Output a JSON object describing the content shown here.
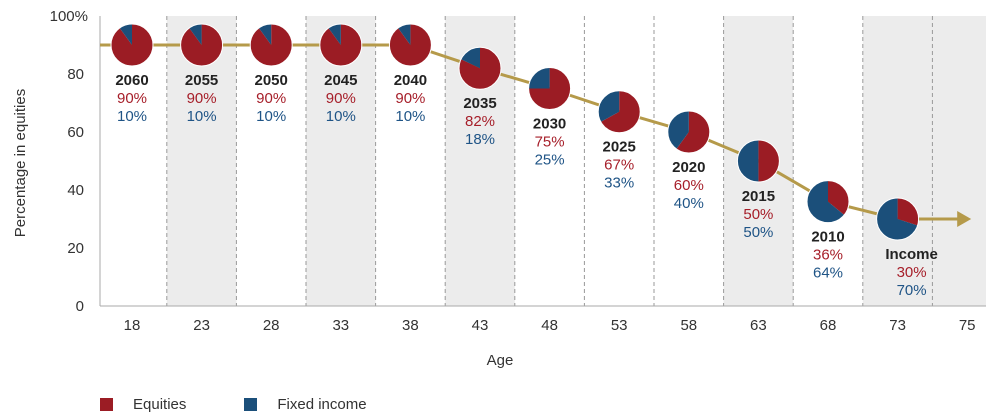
{
  "colors": {
    "equities": "#9b1c24",
    "fixed_income": "#1b4f7a",
    "path_line": "#b59a4a",
    "shade": "#ececec",
    "grid_dash": "#999999",
    "equity_text": "#a61e29",
    "fixed_text": "#1f5486"
  },
  "chart_data": {
    "type": "line",
    "title": "",
    "xlabel": "Age",
    "ylabel": "Percentage in equities",
    "xlim": [
      18,
      75
    ],
    "ylim": [
      0,
      100
    ],
    "x_ticks": [
      "18",
      "23",
      "28",
      "33",
      "38",
      "43",
      "48",
      "53",
      "58",
      "63",
      "68",
      "73",
      "75"
    ],
    "y_ticks": [
      "0",
      "20",
      "40",
      "60",
      "80",
      "100%"
    ],
    "grid": "vertical dashed",
    "legend_position": "bottom-left",
    "series": [
      {
        "name": "Equities",
        "x": [
          18,
          23,
          28,
          33,
          38,
          43,
          48,
          53,
          58,
          63,
          68,
          73,
          75
        ],
        "values": [
          90,
          90,
          90,
          90,
          90,
          82,
          75,
          67,
          60,
          50,
          36,
          30,
          30
        ]
      }
    ],
    "funds": [
      {
        "label": "2060",
        "age": 18,
        "equities": 90,
        "fixed_income": 10,
        "equities_label": "90%",
        "fixed_label": "10%"
      },
      {
        "label": "2055",
        "age": 23,
        "equities": 90,
        "fixed_income": 10,
        "equities_label": "90%",
        "fixed_label": "10%"
      },
      {
        "label": "2050",
        "age": 28,
        "equities": 90,
        "fixed_income": 10,
        "equities_label": "90%",
        "fixed_label": "10%"
      },
      {
        "label": "2045",
        "age": 33,
        "equities": 90,
        "fixed_income": 10,
        "equities_label": "90%",
        "fixed_label": "10%"
      },
      {
        "label": "2040",
        "age": 38,
        "equities": 90,
        "fixed_income": 10,
        "equities_label": "90%",
        "fixed_label": "10%"
      },
      {
        "label": "2035",
        "age": 43,
        "equities": 82,
        "fixed_income": 18,
        "equities_label": "82%",
        "fixed_label": "18%"
      },
      {
        "label": "2030",
        "age": 48,
        "equities": 75,
        "fixed_income": 25,
        "equities_label": "75%",
        "fixed_label": "25%"
      },
      {
        "label": "2025",
        "age": 53,
        "equities": 67,
        "fixed_income": 33,
        "equities_label": "67%",
        "fixed_label": "33%"
      },
      {
        "label": "2020",
        "age": 58,
        "equities": 60,
        "fixed_income": 40,
        "equities_label": "60%",
        "fixed_label": "40%"
      },
      {
        "label": "2015",
        "age": 63,
        "equities": 50,
        "fixed_income": 50,
        "equities_label": "50%",
        "fixed_label": "50%"
      },
      {
        "label": "2010",
        "age": 68,
        "equities": 36,
        "fixed_income": 64,
        "equities_label": "36%",
        "fixed_label": "64%"
      },
      {
        "label": "Income",
        "age": 73,
        "equities": 30,
        "fixed_income": 70,
        "equities_label": "30%",
        "fixed_label": "70%"
      }
    ],
    "legend": [
      {
        "name": "Equities",
        "color_key": "equities"
      },
      {
        "name": "Fixed income",
        "color_key": "fixed_income"
      }
    ]
  }
}
